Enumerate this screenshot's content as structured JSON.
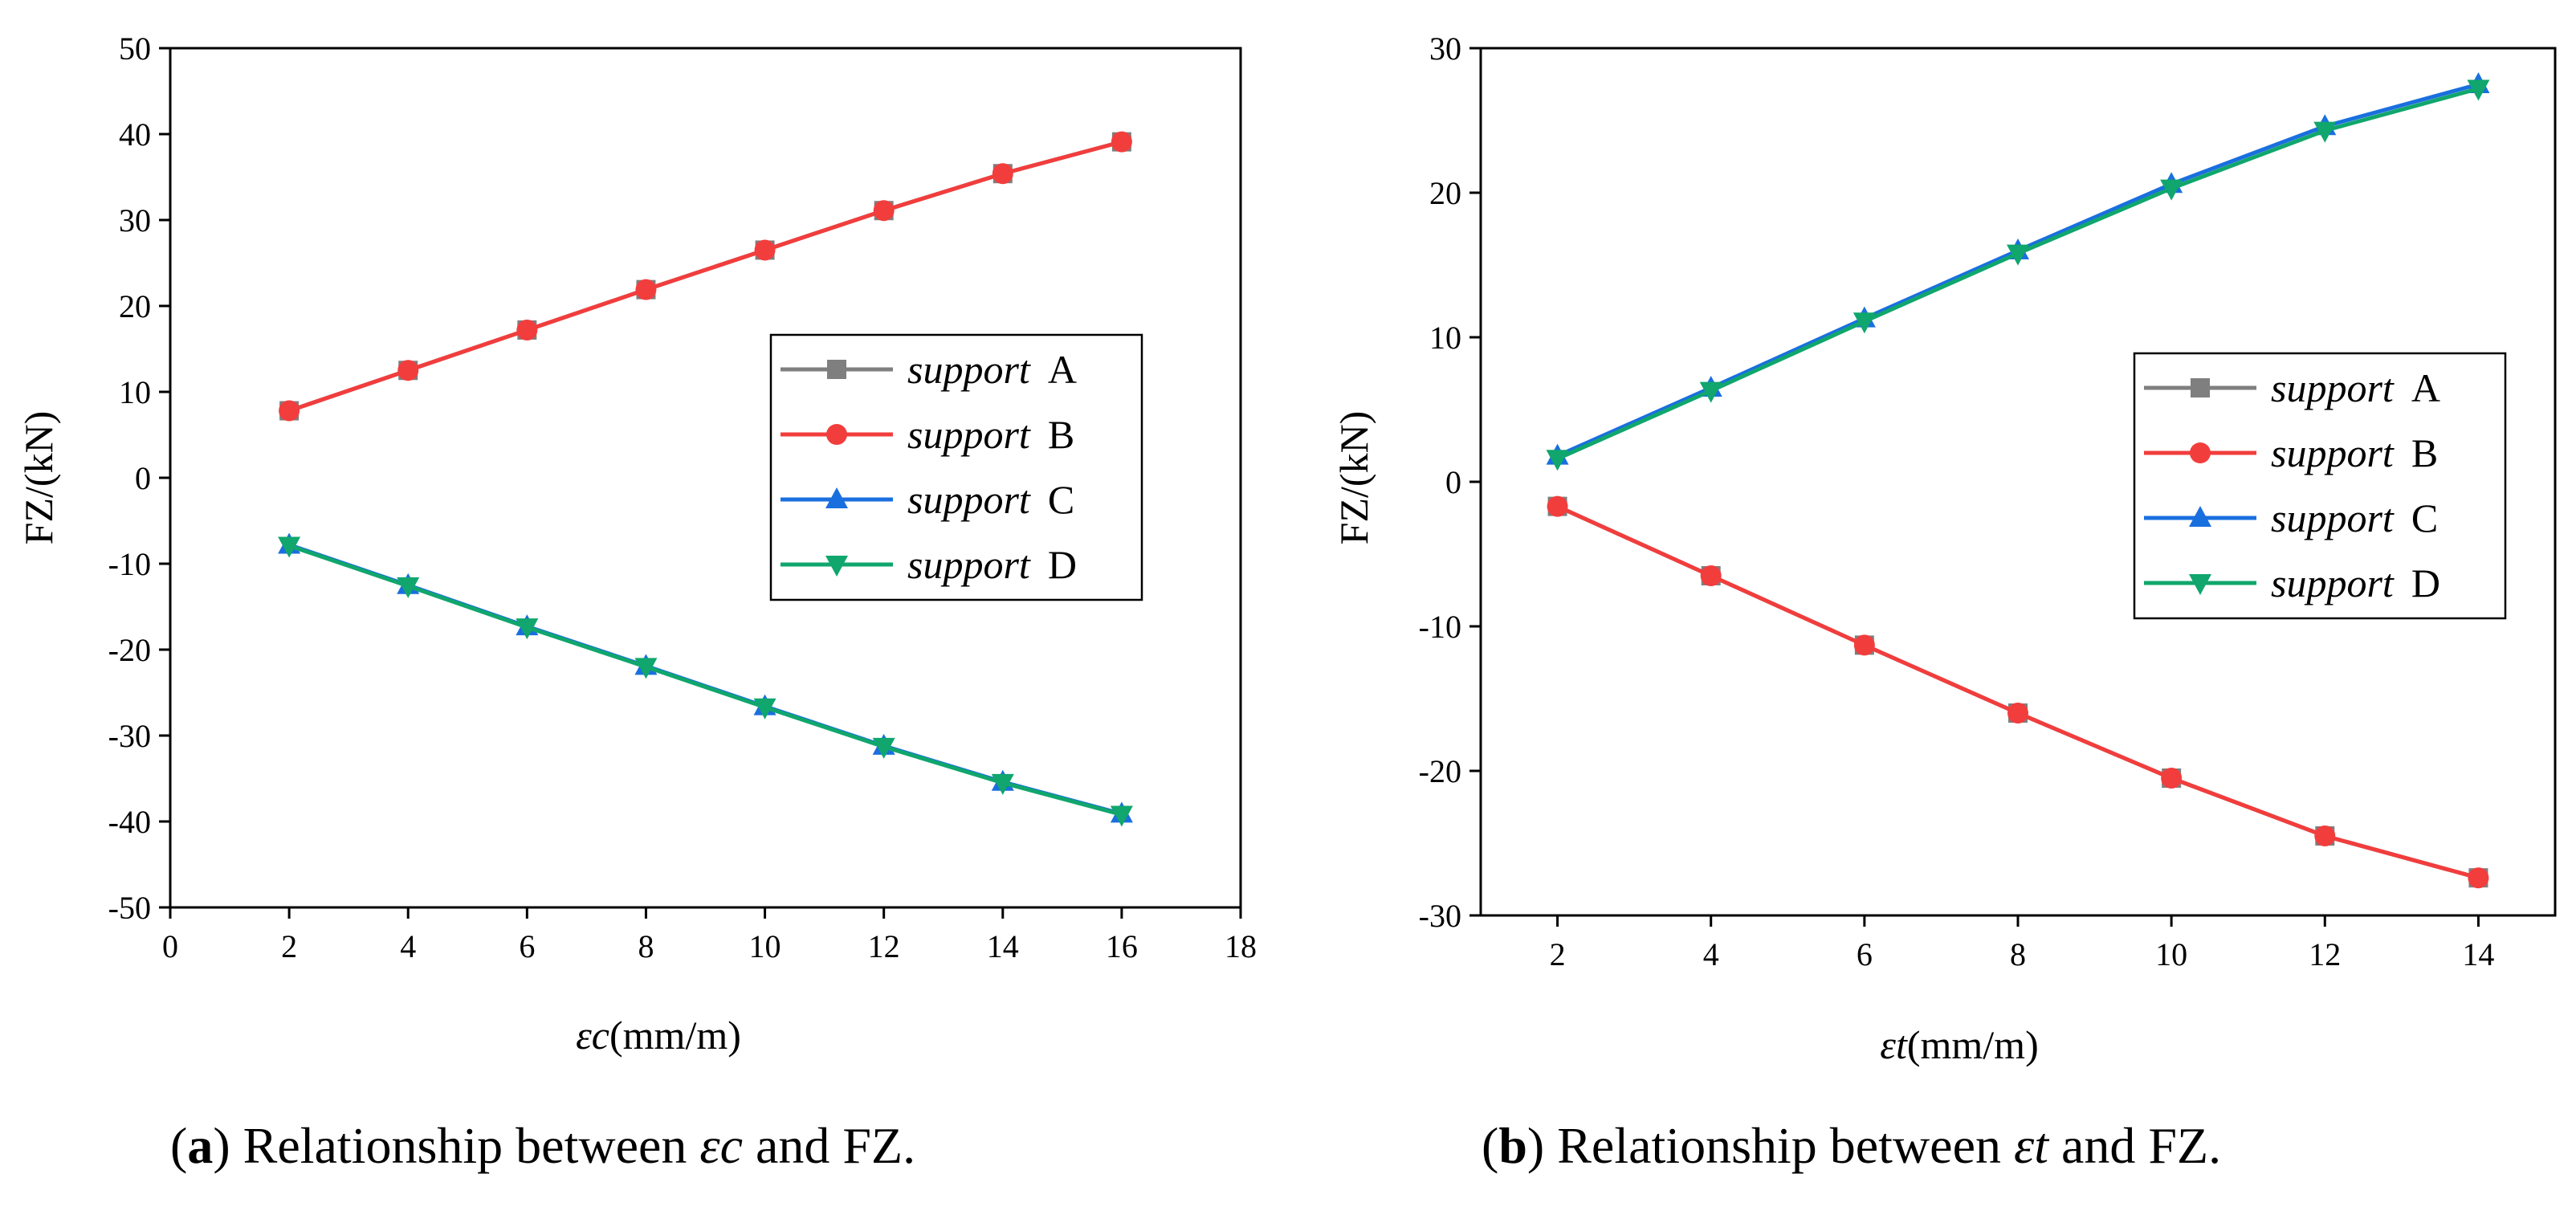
{
  "chart_data": [
    {
      "type": "line",
      "id": "a",
      "caption": {
        "letter": "a",
        "text_before": " Relationship between ",
        "symbol": "εc",
        "text_after": " and FZ."
      },
      "xlabel": {
        "symbol": "εc",
        "unit": "(mm/m)"
      },
      "ylabel": "FZ/(kN)",
      "xlim": [
        0,
        18
      ],
      "ylim": [
        -50,
        50
      ],
      "xticks": [
        0,
        2,
        4,
        6,
        8,
        10,
        12,
        14,
        16,
        18
      ],
      "yticks": [
        -50,
        -40,
        -30,
        -20,
        -10,
        0,
        10,
        20,
        30,
        40,
        50
      ],
      "x": [
        2,
        4,
        6,
        8,
        10,
        12,
        14,
        16
      ],
      "series": [
        {
          "name": "A",
          "label": "support",
          "color": "#7f7f7f",
          "marker": "square",
          "values": [
            7.8,
            12.5,
            17.2,
            21.9,
            26.5,
            31.1,
            35.4,
            39.1
          ]
        },
        {
          "name": "B",
          "label": "support",
          "color": "#f23d3d",
          "marker": "circle",
          "values": [
            7.8,
            12.5,
            17.2,
            21.9,
            26.5,
            31.1,
            35.4,
            39.1
          ]
        },
        {
          "name": "C",
          "label": "support",
          "color": "#1a6fdf",
          "marker": "triangle",
          "values": [
            -7.8,
            -12.5,
            -17.3,
            -21.9,
            -26.6,
            -31.2,
            -35.4,
            -39.1
          ]
        },
        {
          "name": "D",
          "label": "support",
          "color": "#10a66d",
          "marker": "triangle-down",
          "values": [
            -7.9,
            -12.6,
            -17.4,
            -22.0,
            -26.7,
            -31.3,
            -35.5,
            -39.2
          ]
        }
      ]
    },
    {
      "type": "line",
      "id": "b",
      "caption": {
        "letter": "b",
        "text_before": " Relationship between ",
        "symbol": "εt",
        "text_after": " and FZ."
      },
      "xlabel": {
        "symbol": "εt",
        "unit": "(mm/m)"
      },
      "ylabel": "FZ/(kN)",
      "xlim": [
        1,
        15
      ],
      "ylim": [
        -30,
        30
      ],
      "xticks": [
        2,
        4,
        6,
        8,
        10,
        12,
        14
      ],
      "yticks": [
        -30,
        -20,
        -10,
        0,
        10,
        20,
        30
      ],
      "x": [
        2,
        4,
        6,
        8,
        10,
        12,
        14
      ],
      "series": [
        {
          "name": "A",
          "label": "support",
          "color": "#7f7f7f",
          "marker": "square",
          "values": [
            -1.7,
            -6.5,
            -11.3,
            -16.0,
            -20.5,
            -24.5,
            -27.4
          ]
        },
        {
          "name": "B",
          "label": "support",
          "color": "#f23d3d",
          "marker": "circle",
          "values": [
            -1.7,
            -6.5,
            -11.3,
            -16.0,
            -20.5,
            -24.5,
            -27.4
          ]
        },
        {
          "name": "C",
          "label": "support",
          "color": "#1a6fdf",
          "marker": "triangle",
          "values": [
            1.8,
            6.5,
            11.3,
            16.0,
            20.6,
            24.6,
            27.5
          ]
        },
        {
          "name": "D",
          "label": "support",
          "color": "#10a66d",
          "marker": "triangle-down",
          "values": [
            1.6,
            6.3,
            11.1,
            15.8,
            20.3,
            24.3,
            27.2
          ]
        }
      ]
    }
  ]
}
